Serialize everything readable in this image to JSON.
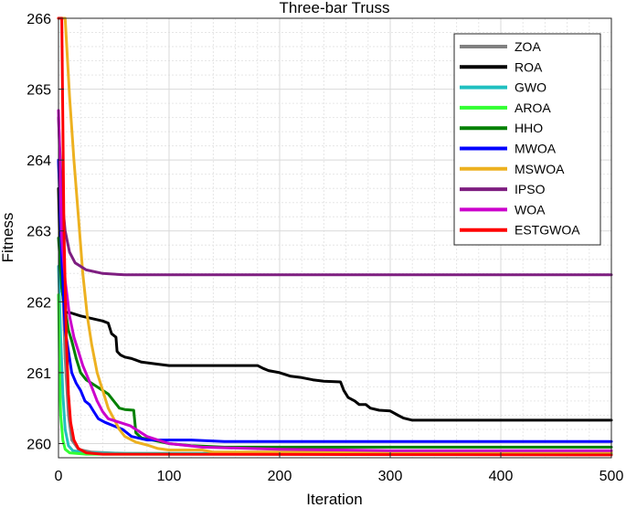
{
  "chart_data": {
    "type": "line",
    "title": "Three-bar Truss",
    "xlabel": "Iteration",
    "ylabel": "Fitness",
    "xlim": [
      0,
      500
    ],
    "ylim": [
      259.8,
      266
    ],
    "xticks": [
      0,
      100,
      200,
      300,
      400,
      500
    ],
    "yticks": [
      260,
      261,
      262,
      263,
      264,
      265,
      266
    ],
    "grid": true,
    "legend_position": "top-right",
    "series": [
      {
        "name": "ZOA",
        "color": "#808080",
        "points": [
          [
            0,
            264.0
          ],
          [
            3,
            262.6
          ],
          [
            6,
            261.2
          ],
          [
            9,
            260.4
          ],
          [
            12,
            260.05
          ],
          [
            18,
            259.92
          ],
          [
            30,
            259.88
          ],
          [
            60,
            259.86
          ],
          [
            150,
            259.86
          ],
          [
            500,
            259.86
          ]
        ]
      },
      {
        "name": "ROA",
        "color": "#000000",
        "points": [
          [
            0,
            263.6
          ],
          [
            1,
            262.9
          ],
          [
            3,
            262.2
          ],
          [
            6,
            261.85
          ],
          [
            10,
            261.85
          ],
          [
            20,
            261.8
          ],
          [
            40,
            261.73
          ],
          [
            45,
            261.7
          ],
          [
            48,
            261.55
          ],
          [
            52,
            261.5
          ],
          [
            53,
            261.3
          ],
          [
            56,
            261.25
          ],
          [
            60,
            261.22
          ],
          [
            66,
            261.2
          ],
          [
            75,
            261.15
          ],
          [
            90,
            261.12
          ],
          [
            100,
            261.1
          ],
          [
            110,
            261.1
          ],
          [
            150,
            261.1
          ],
          [
            180,
            261.1
          ],
          [
            185,
            261.06
          ],
          [
            190,
            261.03
          ],
          [
            200,
            261.0
          ],
          [
            210,
            260.95
          ],
          [
            220,
            260.93
          ],
          [
            230,
            260.9
          ],
          [
            240,
            260.88
          ],
          [
            255,
            260.87
          ],
          [
            258,
            260.75
          ],
          [
            262,
            260.65
          ],
          [
            268,
            260.6
          ],
          [
            272,
            260.55
          ],
          [
            278,
            260.55
          ],
          [
            282,
            260.5
          ],
          [
            290,
            260.47
          ],
          [
            300,
            260.46
          ],
          [
            307,
            260.4
          ],
          [
            312,
            260.36
          ],
          [
            320,
            260.33
          ],
          [
            330,
            260.33
          ],
          [
            500,
            260.33
          ]
        ]
      },
      {
        "name": "GWO",
        "color": "#20c0c0",
        "points": [
          [
            0,
            262.5
          ],
          [
            2,
            261.5
          ],
          [
            4,
            260.7
          ],
          [
            6,
            260.2
          ],
          [
            9,
            259.97
          ],
          [
            13,
            259.9
          ],
          [
            25,
            259.87
          ],
          [
            60,
            259.86
          ],
          [
            500,
            259.85
          ]
        ]
      },
      {
        "name": "AROA",
        "color": "#33ff33",
        "points": [
          [
            0,
            262.1
          ],
          [
            1,
            261.0
          ],
          [
            2,
            260.4
          ],
          [
            4,
            260.05
          ],
          [
            6,
            259.92
          ],
          [
            10,
            259.87
          ],
          [
            25,
            259.85
          ],
          [
            500,
            259.85
          ]
        ]
      },
      {
        "name": "HHO",
        "color": "#008000",
        "points": [
          [
            0,
            262.9
          ],
          [
            3,
            262.2
          ],
          [
            6,
            261.9
          ],
          [
            9,
            261.6
          ],
          [
            12,
            261.45
          ],
          [
            16,
            261.2
          ],
          [
            20,
            261.0
          ],
          [
            25,
            260.9
          ],
          [
            30,
            260.85
          ],
          [
            35,
            260.8
          ],
          [
            40,
            260.75
          ],
          [
            45,
            260.7
          ],
          [
            50,
            260.6
          ],
          [
            55,
            260.5
          ],
          [
            60,
            260.48
          ],
          [
            68,
            260.47
          ],
          [
            70,
            260.15
          ],
          [
            75,
            260.08
          ],
          [
            85,
            260.05
          ],
          [
            100,
            260.0
          ],
          [
            120,
            259.97
          ],
          [
            150,
            259.95
          ],
          [
            500,
            259.95
          ]
        ]
      },
      {
        "name": "MWOA",
        "color": "#0000ff",
        "points": [
          [
            0,
            264.0
          ],
          [
            3,
            262.6
          ],
          [
            6,
            261.6
          ],
          [
            9,
            261.3
          ],
          [
            12,
            261.0
          ],
          [
            16,
            260.85
          ],
          [
            20,
            260.75
          ],
          [
            24,
            260.6
          ],
          [
            28,
            260.55
          ],
          [
            32,
            260.45
          ],
          [
            36,
            260.35
          ],
          [
            42,
            260.3
          ],
          [
            50,
            260.25
          ],
          [
            58,
            260.2
          ],
          [
            66,
            260.1
          ],
          [
            80,
            260.05
          ],
          [
            120,
            260.05
          ],
          [
            150,
            260.03
          ],
          [
            500,
            260.03
          ]
        ]
      },
      {
        "name": "MSWOA",
        "color": "#edb120",
        "points": [
          [
            0,
            266.0
          ],
          [
            6,
            266.0
          ],
          [
            10,
            264.9
          ],
          [
            14,
            264.0
          ],
          [
            18,
            263.2
          ],
          [
            22,
            262.4
          ],
          [
            26,
            261.8
          ],
          [
            30,
            261.4
          ],
          [
            35,
            261.0
          ],
          [
            40,
            260.75
          ],
          [
            45,
            260.5
          ],
          [
            50,
            260.35
          ],
          [
            55,
            260.2
          ],
          [
            60,
            260.1
          ],
          [
            70,
            260.02
          ],
          [
            80,
            259.98
          ],
          [
            90,
            259.93
          ],
          [
            100,
            259.91
          ],
          [
            130,
            259.91
          ],
          [
            140,
            259.88
          ],
          [
            500,
            259.88
          ]
        ]
      },
      {
        "name": "IPSO",
        "color": "#7e1e80",
        "points": [
          [
            0,
            264.6
          ],
          [
            3,
            263.5
          ],
          [
            6,
            263.0
          ],
          [
            10,
            262.7
          ],
          [
            15,
            262.55
          ],
          [
            25,
            262.45
          ],
          [
            40,
            262.4
          ],
          [
            60,
            262.38
          ],
          [
            100,
            262.38
          ],
          [
            500,
            262.38
          ]
        ]
      },
      {
        "name": "WOA",
        "color": "#cc00cc",
        "points": [
          [
            0,
            264.7
          ],
          [
            3,
            262.9
          ],
          [
            6,
            262.3
          ],
          [
            10,
            261.8
          ],
          [
            14,
            261.5
          ],
          [
            18,
            261.3
          ],
          [
            22,
            261.1
          ],
          [
            26,
            260.95
          ],
          [
            30,
            260.8
          ],
          [
            35,
            260.6
          ],
          [
            40,
            260.45
          ],
          [
            45,
            260.35
          ],
          [
            55,
            260.3
          ],
          [
            65,
            260.25
          ],
          [
            80,
            260.1
          ],
          [
            100,
            260.0
          ],
          [
            130,
            259.95
          ],
          [
            200,
            259.92
          ],
          [
            300,
            259.9
          ],
          [
            500,
            259.9
          ]
        ]
      },
      {
        "name": "ESTGWOA",
        "color": "#ff0000",
        "points": [
          [
            0,
            266.0
          ],
          [
            3,
            266.0
          ],
          [
            5,
            263.0
          ],
          [
            7,
            261.5
          ],
          [
            9,
            260.7
          ],
          [
            11,
            260.3
          ],
          [
            14,
            260.05
          ],
          [
            18,
            259.93
          ],
          [
            25,
            259.87
          ],
          [
            40,
            259.85
          ],
          [
            500,
            259.84
          ]
        ]
      }
    ]
  }
}
